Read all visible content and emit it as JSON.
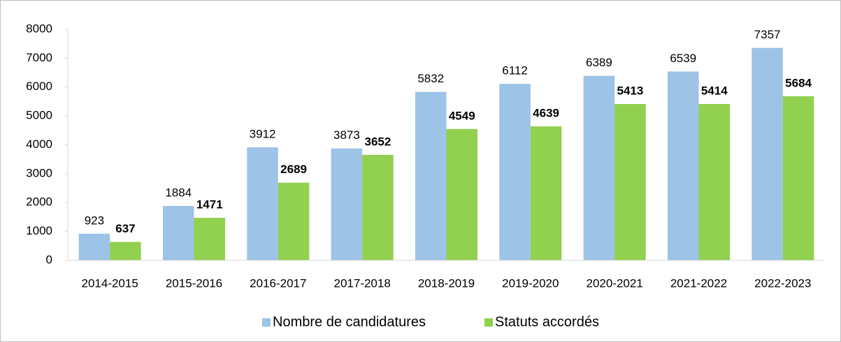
{
  "chart_data": {
    "type": "bar",
    "categories": [
      "2014-2015",
      "2015-2016",
      "2016-2017",
      "2017-2018",
      "2018-2019",
      "2019-2020",
      "2020-2021",
      "2021-2022",
      "2022-2023"
    ],
    "series": [
      {
        "name": "Nombre de candidatures",
        "color": "#9dc3e6",
        "values": [
          923,
          1884,
          3912,
          3873,
          5832,
          6112,
          6389,
          6539,
          7357
        ]
      },
      {
        "name": "Statuts accordés",
        "color": "#92d050",
        "values": [
          637,
          1471,
          2689,
          3652,
          4549,
          4639,
          5413,
          5414,
          5684
        ]
      }
    ],
    "ylim": [
      0,
      8000
    ],
    "yticks": [
      0,
      1000,
      2000,
      3000,
      4000,
      5000,
      6000,
      7000,
      8000
    ],
    "grid": false,
    "legend": "bottom"
  }
}
